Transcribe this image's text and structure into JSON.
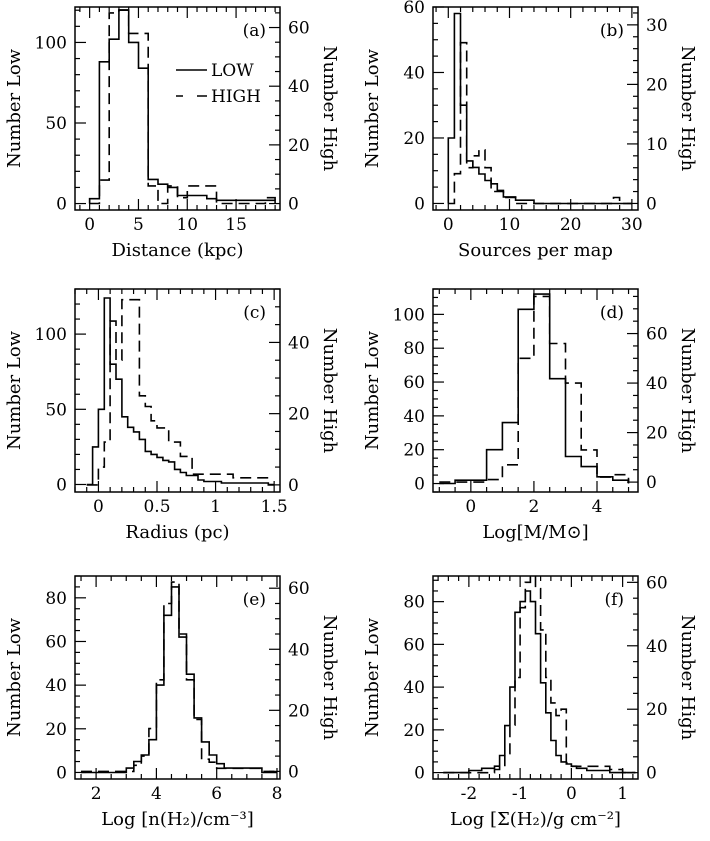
{
  "figure": {
    "legend": {
      "low": "LOW",
      "high": "HIGH"
    }
  },
  "chart_data": [
    {
      "type": "histogram",
      "panel": "(a)",
      "xlabel": "Distance (kpc)",
      "ylabel_left": "Number Low",
      "ylabel_right": "Number High",
      "xlim": [
        -1.5,
        19.5
      ],
      "ylim_left": [
        -4,
        122
      ],
      "ylim_right": [
        -2.2,
        67
      ],
      "xticks": [
        0,
        5,
        10,
        15
      ],
      "xminor": 1,
      "yticks_left": [
        0,
        50,
        100
      ],
      "yminor_left": 10,
      "yticks_right": [
        0,
        20,
        40,
        60
      ],
      "yminor_right": 5,
      "legend": "top-right",
      "low": {
        "edges": [
          0,
          1,
          2,
          3,
          4,
          5,
          6,
          7,
          8,
          9,
          10,
          11,
          12,
          13,
          14,
          15,
          16,
          17,
          18,
          19
        ],
        "values": [
          3,
          88,
          102,
          120,
          100,
          84,
          15,
          12,
          10,
          5,
          5,
          5,
          3,
          2,
          2,
          2,
          2,
          2,
          2
        ]
      },
      "high": {
        "edges": [
          0,
          1,
          2,
          3,
          4,
          5,
          6,
          7,
          8,
          9,
          10,
          11,
          12,
          13,
          14,
          15,
          16,
          17,
          18,
          19
        ],
        "values": [
          0,
          8,
          65,
          66,
          58,
          58,
          6,
          0,
          6,
          2,
          6,
          6,
          6,
          0,
          0,
          0,
          0,
          0,
          2
        ]
      }
    },
    {
      "type": "histogram",
      "panel": "(b)",
      "xlabel": "Sources per map",
      "ylabel_left": "Number Low",
      "ylabel_right": "Number High",
      "xlim": [
        -2.5,
        31
      ],
      "ylim_left": [
        -2,
        60
      ],
      "ylim_right": [
        -1.1,
        33
      ],
      "xticks": [
        0,
        10,
        20,
        30
      ],
      "xminor": 2,
      "yticks_left": [
        0,
        20,
        40,
        60
      ],
      "yminor_left": 5,
      "yticks_right": [
        0,
        10,
        20,
        30
      ],
      "yminor_right": 2,
      "low": {
        "edges": [
          0,
          1,
          2,
          3,
          4,
          5,
          6,
          7,
          8,
          9,
          10,
          11,
          12,
          13,
          14,
          15,
          16,
          17,
          18,
          19,
          20,
          21,
          22,
          23,
          24,
          25,
          26,
          27,
          28,
          29,
          30
        ],
        "values": [
          20,
          58,
          30,
          13,
          11,
          9,
          7,
          6,
          4,
          2,
          2,
          1,
          1,
          1,
          0,
          0,
          0,
          0,
          0,
          0,
          0,
          0,
          0,
          0,
          0,
          0,
          0,
          0,
          0,
          0
        ]
      },
      "high": {
        "edges": [
          0,
          1,
          2,
          3,
          4,
          5,
          6,
          7,
          8,
          9,
          10,
          11,
          12,
          13,
          14,
          15,
          16,
          17,
          18,
          19,
          20,
          21,
          22,
          23,
          24,
          25,
          26,
          27,
          28,
          29,
          30
        ],
        "values": [
          0,
          5,
          27,
          6,
          8,
          9,
          6,
          2,
          2,
          1,
          1,
          0,
          0,
          0,
          0,
          0,
          0,
          0,
          0,
          0,
          0,
          0,
          0,
          0,
          0,
          0,
          0,
          1,
          0,
          0
        ]
      }
    },
    {
      "type": "histogram",
      "panel": "(c)",
      "xlabel": "Radius (pc)",
      "ylabel_left": "Number Low",
      "ylabel_right": "Number High",
      "xlim": [
        -0.2,
        1.55
      ],
      "ylim_left": [
        -5,
        130
      ],
      "ylim_right": [
        -2,
        55
      ],
      "xticks": [
        0,
        0.5,
        1,
        1.5
      ],
      "xminor": 0.1,
      "yticks_left": [
        0,
        50,
        100
      ],
      "yminor_left": 10,
      "yticks_right": [
        0,
        20,
        40
      ],
      "yminor_right": 5,
      "low": {
        "edges": [
          -0.1,
          -0.05,
          0,
          0.05,
          0.1,
          0.15,
          0.2,
          0.25,
          0.3,
          0.35,
          0.4,
          0.45,
          0.5,
          0.55,
          0.6,
          0.65,
          0.7,
          0.75,
          0.8,
          0.85,
          0.9,
          0.95,
          1,
          1.05,
          1.1,
          1.15,
          1.2,
          1.25,
          1.3,
          1.35,
          1.4,
          1.45,
          1.5
        ],
        "values": [
          0,
          25,
          50,
          124,
          80,
          70,
          45,
          38,
          35,
          30,
          22,
          20,
          18,
          16,
          15,
          10,
          8,
          6,
          6,
          3,
          2,
          2,
          2,
          1,
          1,
          1,
          1,
          1,
          1,
          1,
          1,
          0
        ]
      },
      "high": {
        "edges": [
          -0.1,
          -0.05,
          0,
          0.05,
          0.1,
          0.15,
          0.2,
          0.25,
          0.3,
          0.35,
          0.4,
          0.45,
          0.5,
          0.55,
          0.6,
          0.65,
          0.7,
          0.75,
          0.8,
          0.85,
          0.9,
          0.95,
          1,
          1.05,
          1.1,
          1.15,
          1.2,
          1.25,
          1.3,
          1.35,
          1.4,
          1.45,
          1.5
        ],
        "values": [
          0,
          0,
          5,
          12,
          46,
          35,
          52,
          52,
          52,
          25,
          22,
          18,
          16,
          16,
          12,
          12,
          8,
          8,
          3,
          3,
          3,
          3,
          3,
          3,
          3,
          2,
          2,
          2,
          2,
          2,
          2,
          0
        ]
      }
    },
    {
      "type": "histogram",
      "panel": "(d)",
      "xlabel": "Log[M/M⊙]",
      "ylabel_left": "Number Low",
      "ylabel_right": "Number High",
      "xlim": [
        -1.2,
        5.3
      ],
      "ylim_left": [
        -5,
        115
      ],
      "ylim_right": [
        -4,
        78
      ],
      "xticks": [
        0,
        2,
        4
      ],
      "xminor": 0.5,
      "yticks_left": [
        0,
        20,
        40,
        60,
        80,
        100
      ],
      "yminor_left": 5,
      "yticks_right": [
        0,
        20,
        40,
        60
      ],
      "yminor_right": 5,
      "low": {
        "edges": [
          -1,
          -0.5,
          0,
          0.5,
          1,
          1.5,
          2,
          2.5,
          3,
          3.5,
          4,
          4.5,
          5
        ],
        "values": [
          0,
          2,
          2,
          20,
          36,
          103,
          112,
          62,
          16,
          10,
          4,
          2
        ]
      },
      "high": {
        "edges": [
          -1,
          -0.5,
          0,
          0.5,
          1,
          1.5,
          2,
          2.5,
          3,
          3.5,
          4,
          4.5,
          5
        ],
        "values": [
          0,
          0,
          0,
          1,
          7,
          50,
          75,
          56,
          40,
          13,
          2,
          3
        ]
      }
    },
    {
      "type": "histogram",
      "panel": "(e)",
      "xlabel": "Log [n(H₂)/cm⁻³]",
      "ylabel_left": "Number Low",
      "ylabel_right": "Number High",
      "xlim": [
        1.3,
        8.1
      ],
      "ylim_left": [
        -3,
        90
      ],
      "ylim_right": [
        -2.5,
        64
      ],
      "xticks": [
        2,
        4,
        6,
        8
      ],
      "xminor": 0.5,
      "yticks_left": [
        0,
        20,
        40,
        60,
        80
      ],
      "yminor_left": 5,
      "yticks_right": [
        0,
        20,
        40,
        60
      ],
      "yminor_right": 5,
      "low": {
        "edges": [
          1.5,
          2,
          2.5,
          3,
          3.25,
          3.5,
          3.75,
          4,
          4.25,
          4.5,
          4.75,
          5,
          5.25,
          5.5,
          5.75,
          6,
          6.25,
          6.5,
          7,
          7.5,
          8
        ],
        "values": [
          0,
          0,
          0,
          2,
          5,
          8,
          15,
          40,
          72,
          85,
          62,
          45,
          25,
          14,
          8,
          4,
          2,
          2,
          2,
          0
        ]
      },
      "high": {
        "edges": [
          1.5,
          2,
          2.5,
          3,
          3.25,
          3.5,
          3.75,
          4,
          4.25,
          4.5,
          4.75,
          5,
          5.25,
          5.5,
          5.75,
          6,
          6.25,
          6.5,
          7,
          7.5,
          8
        ],
        "values": [
          0,
          0,
          0,
          0,
          2,
          5,
          14,
          30,
          55,
          62,
          45,
          30,
          17,
          4,
          3,
          1,
          1,
          1,
          1,
          0
        ]
      }
    },
    {
      "type": "histogram",
      "panel": "(f)",
      "xlabel": "Log [Σ(H₂)/g cm⁻²]",
      "ylabel_left": "Number Low",
      "ylabel_right": "Number High",
      "xlim": [
        -2.7,
        1.3
      ],
      "ylim_left": [
        -3,
        92
      ],
      "ylim_right": [
        -2,
        62
      ],
      "xticks": [
        -2,
        -1,
        0,
        1
      ],
      "xminor": 0.2,
      "yticks_left": [
        0,
        20,
        40,
        60,
        80
      ],
      "yminor_left": 5,
      "yticks_right": [
        0,
        20,
        40,
        60
      ],
      "yminor_right": 5,
      "low": {
        "edges": [
          -2.5,
          -2.25,
          -2,
          -1.75,
          -1.5,
          -1.4,
          -1.3,
          -1.2,
          -1.1,
          -1,
          -0.9,
          -0.8,
          -0.7,
          -0.6,
          -0.5,
          -0.4,
          -0.3,
          -0.2,
          -0.1,
          0,
          0.1,
          0.2,
          0.3,
          0.5,
          0.75,
          1,
          1.25
        ],
        "values": [
          0,
          0,
          1,
          2,
          3,
          8,
          22,
          40,
          75,
          80,
          85,
          80,
          65,
          42,
          28,
          15,
          8,
          5,
          4,
          3,
          2,
          2,
          1,
          1,
          0,
          0
        ]
      },
      "high": {
        "edges": [
          -2.5,
          -2.25,
          -2,
          -1.75,
          -1.5,
          -1.4,
          -1.3,
          -1.2,
          -1.1,
          -1,
          -0.9,
          -0.8,
          -0.7,
          -0.6,
          -0.5,
          -0.4,
          -0.3,
          -0.2,
          -0.1,
          0,
          0.1,
          0.2,
          0.3,
          0.5,
          0.75,
          1,
          1.25
        ],
        "values": [
          0,
          0,
          0,
          0,
          1,
          2,
          6,
          15,
          30,
          52,
          60,
          62,
          58,
          45,
          30,
          22,
          18,
          20,
          3,
          2,
          2,
          2,
          2,
          2,
          1,
          0
        ]
      }
    }
  ]
}
